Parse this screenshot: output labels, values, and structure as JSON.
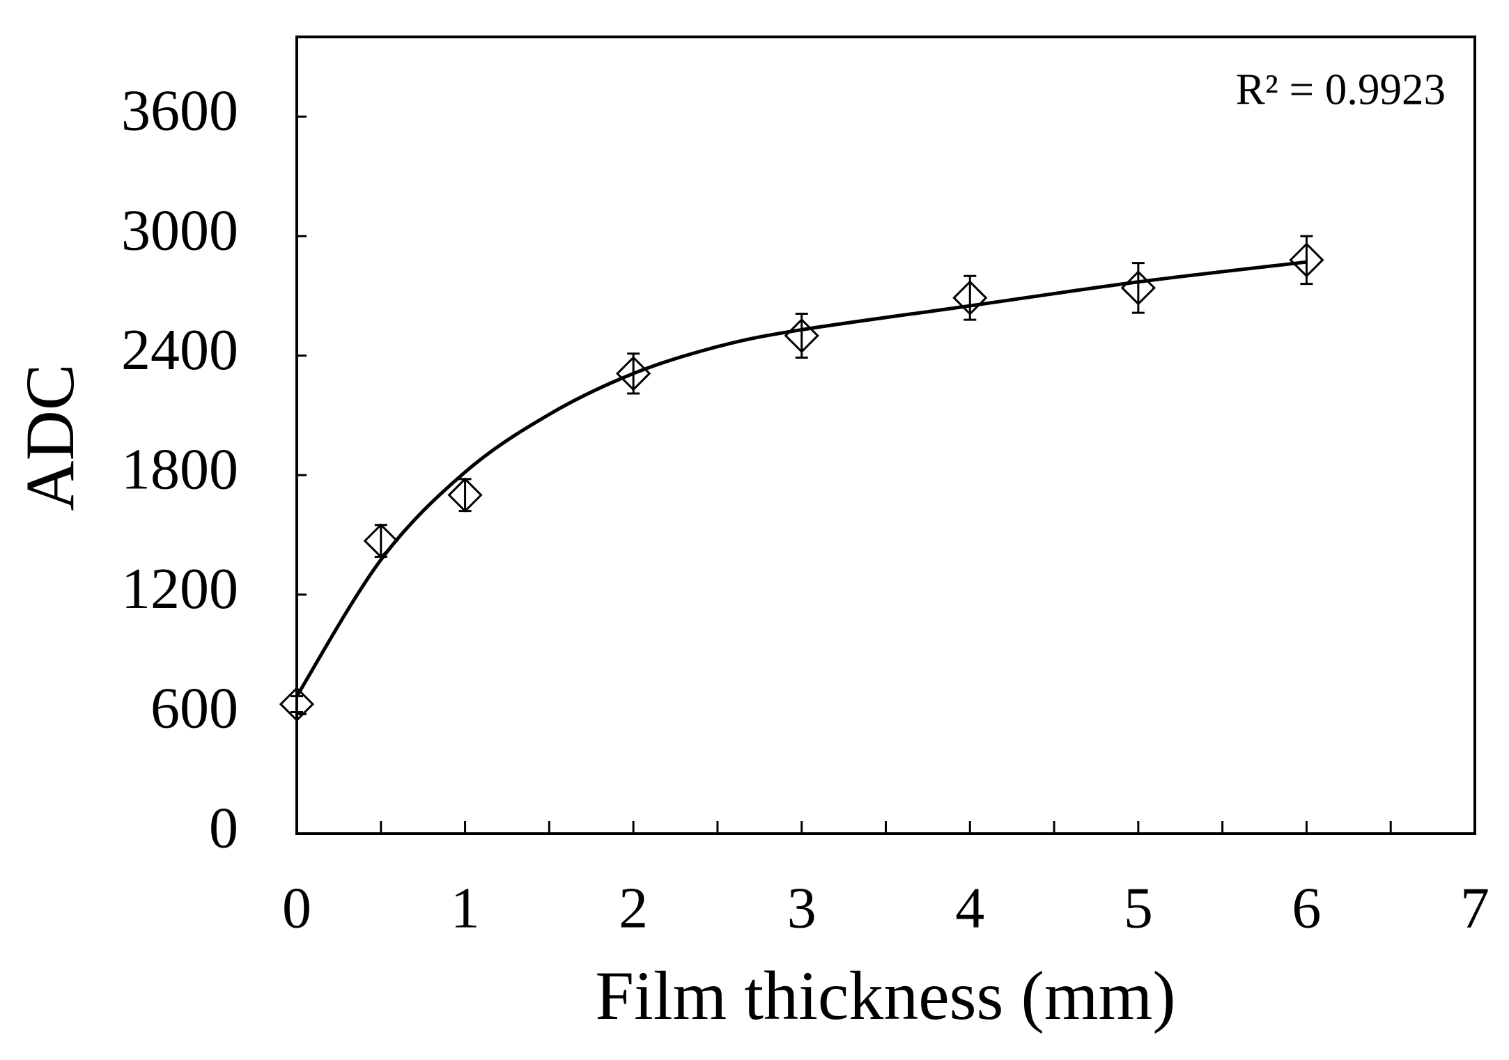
{
  "chart_data": {
    "type": "scatter",
    "x_label": "Film thickness (mm)",
    "y_label": "ADC",
    "annotation": "R² = 0.9923",
    "x": [
      0,
      0.5,
      1,
      2,
      3,
      4,
      5,
      6
    ],
    "values": [
      650,
      1470,
      1700,
      2310,
      2500,
      2690,
      2740,
      2880
    ],
    "errors": [
      40,
      80,
      80,
      100,
      110,
      110,
      125,
      120
    ],
    "color": "#000000",
    "fit": {
      "x": [
        0,
        0.5,
        1,
        1.5,
        2,
        2.5,
        3,
        4,
        5,
        6
      ],
      "values": [
        690,
        1375,
        1815,
        2105,
        2310,
        2445,
        2530,
        2650,
        2770,
        2870
      ]
    },
    "xlim": [
      0,
      7
    ],
    "xticks": [
      0,
      1,
      2,
      3,
      4,
      5,
      6,
      7
    ],
    "xminorticks": [
      0.5,
      1.5,
      2.5,
      3.5,
      4.5,
      5.5,
      6.5
    ],
    "ylim": [
      0,
      4000
    ],
    "yticks": [
      0,
      600,
      1200,
      1800,
      2400,
      3000,
      3600
    ]
  }
}
